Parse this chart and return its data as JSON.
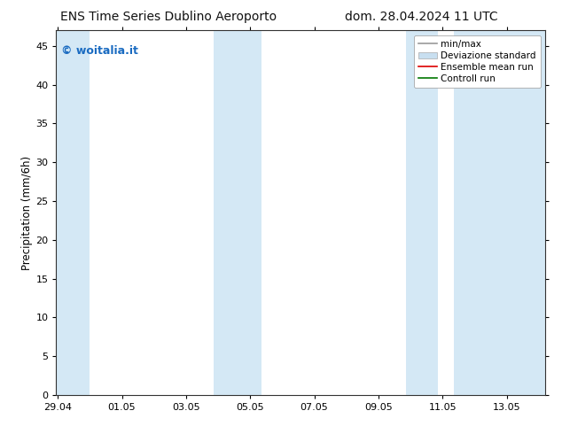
{
  "title_left": "ENS Time Series Dublino Aeroporto",
  "title_right": "dom. 28.04.2024 11 UTC",
  "ylabel": "Precipitation (mm/6h)",
  "watermark": "© woitalia.it",
  "watermark_color": "#1a6bc1",
  "background_color": "#ffffff",
  "plot_bg_color": "#ffffff",
  "shaded_band_color": "#d4e8f5",
  "ylim": [
    0,
    47
  ],
  "yticks": [
    0,
    5,
    10,
    15,
    20,
    25,
    30,
    35,
    40,
    45
  ],
  "xtick_labels": [
    "29.04",
    "01.05",
    "03.05",
    "05.05",
    "07.05",
    "09.05",
    "11.05",
    "13.05"
  ],
  "xtick_positions": [
    0,
    2,
    4,
    6,
    8,
    10,
    12,
    14
  ],
  "xlim": [
    -0.05,
    15.2
  ],
  "shaded_bands": [
    {
      "x_start": -0.05,
      "x_end": 1.0
    },
    {
      "x_start": 4.85,
      "x_end": 6.35
    },
    {
      "x_start": 10.85,
      "x_end": 11.85
    },
    {
      "x_start": 12.35,
      "x_end": 15.2
    }
  ],
  "legend_entries": [
    {
      "label": "min/max",
      "color": "#999999",
      "lw": 1.2,
      "type": "line"
    },
    {
      "label": "Deviazione standard",
      "color": "#c8dff0",
      "border_color": "#aaaaaa",
      "type": "band"
    },
    {
      "label": "Ensemble mean run",
      "color": "#dd0000",
      "lw": 1.2,
      "type": "line"
    },
    {
      "label": "Controll run",
      "color": "#007700",
      "lw": 1.2,
      "type": "line"
    }
  ],
  "title_fontsize": 10,
  "tick_fontsize": 8,
  "ylabel_fontsize": 8.5,
  "watermark_fontsize": 9,
  "legend_fontsize": 7.5
}
